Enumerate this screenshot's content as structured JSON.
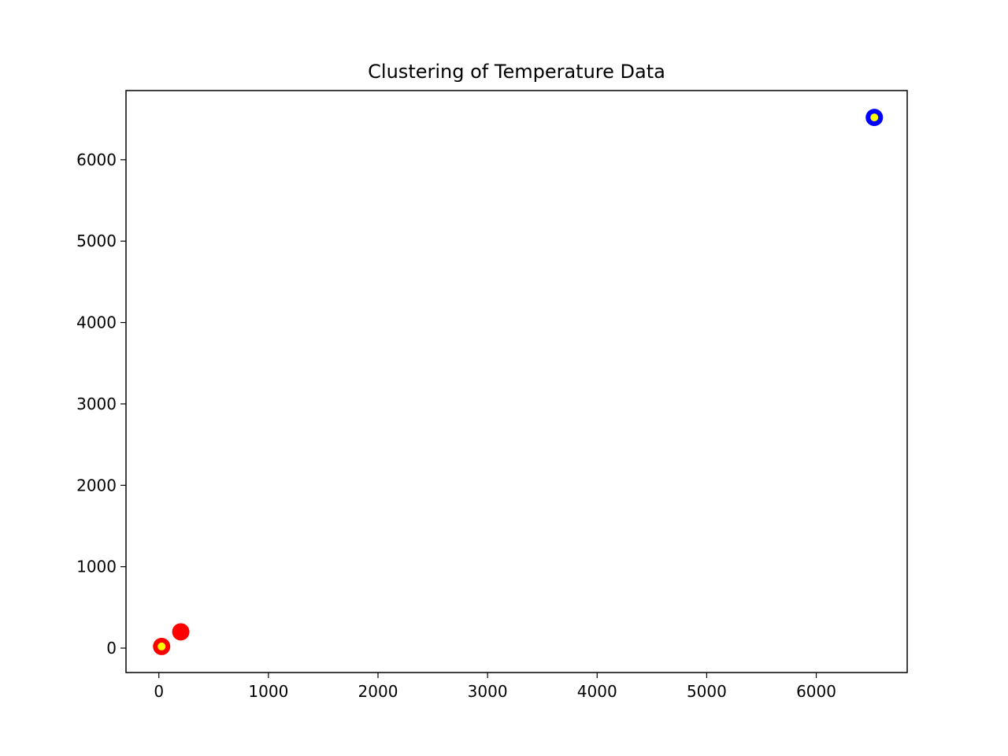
{
  "chart_data": {
    "type": "scatter",
    "title": "Clustering of Temperature Data",
    "xlabel": "",
    "ylabel": "",
    "xlim": [
      -300,
      6830
    ],
    "ylim": [
      -300,
      6850
    ],
    "x_ticks": [
      0,
      1000,
      2000,
      3000,
      4000,
      5000,
      6000
    ],
    "y_ticks": [
      0,
      1000,
      2000,
      3000,
      4000,
      5000,
      6000
    ],
    "grid": false,
    "series": [
      {
        "color": "#ff0000",
        "points": [
          {
            "x": 25,
            "y": 20
          },
          {
            "x": 200,
            "y": 200
          }
        ]
      },
      {
        "color": "#0000ff",
        "points": [
          {
            "x": 6530,
            "y": 6520
          }
        ]
      }
    ],
    "centroids": {
      "color": "#ffff00",
      "points": [
        {
          "x": 25,
          "y": 20
        },
        {
          "x": 6530,
          "y": 6520
        }
      ]
    }
  }
}
